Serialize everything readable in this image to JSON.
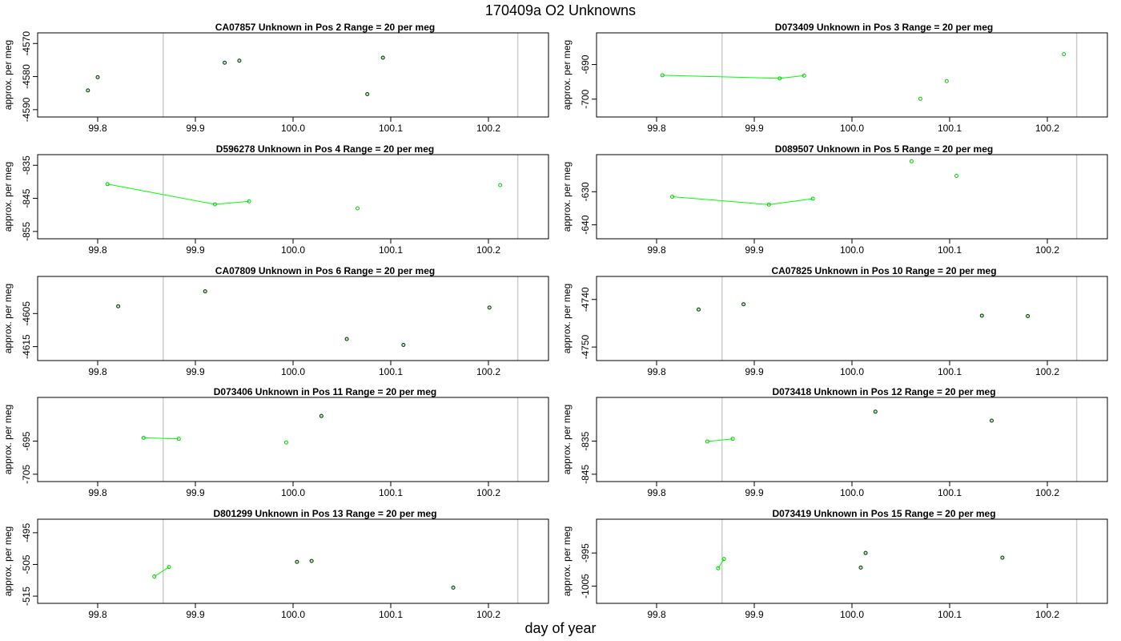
{
  "title": "170409a  O2 Unknowns",
  "xlabel": "day of year",
  "colors": {
    "series": "#00ff00",
    "points_green": "#00cc00",
    "points_dark": "#003300",
    "ref_lines": "#cccccc",
    "axis": "#000000"
  },
  "chart_data": [
    {
      "type": "scatter",
      "title": "CA07857    Unknown in Pos 2          Range = 20 per meg",
      "ylabel": "approx. per meg",
      "xlim": [
        99.75,
        100.25
      ],
      "ylim": [
        -4591,
        -4568
      ],
      "xticks": [
        "99.8",
        "99.9",
        "100.0",
        "100.1",
        "100.2"
      ],
      "yticks": [
        "-4590",
        "-4580",
        "-4570"
      ],
      "ref_lines_x": [
        99.867,
        100.23
      ],
      "lines": [],
      "points": [
        {
          "x": 99.79,
          "y": -4584.2,
          "style": "dark"
        },
        {
          "x": 99.8,
          "y": -4580.2,
          "style": "dark"
        },
        {
          "x": 99.93,
          "y": -4575.8,
          "style": "dark"
        },
        {
          "x": 99.945,
          "y": -4575.2,
          "style": "dark"
        },
        {
          "x": 100.076,
          "y": -4585.3,
          "style": "dark"
        },
        {
          "x": 100.092,
          "y": -4574.3,
          "style": "dark"
        }
      ]
    },
    {
      "type": "scatter",
      "title": "D073409    Unknown in Pos 3          Range = 20 per meg",
      "ylabel": "approx. per meg",
      "xlim": [
        99.75,
        100.25
      ],
      "ylim": [
        -704,
        -682
      ],
      "xticks": [
        "99.8",
        "99.9",
        "100.0",
        "100.1",
        "100.2"
      ],
      "yticks": [
        "-700",
        "-690"
      ],
      "ref_lines_x": [
        99.867,
        100.23
      ],
      "lines": [
        [
          {
            "x": 99.806,
            "y": -693.1
          },
          {
            "x": 99.926,
            "y": -694.0
          },
          {
            "x": 99.951,
            "y": -693.2
          }
        ]
      ],
      "points": [
        {
          "x": 99.806,
          "y": -693.1,
          "style": "green"
        },
        {
          "x": 99.926,
          "y": -694.0,
          "style": "green"
        },
        {
          "x": 99.951,
          "y": -693.2,
          "style": "green"
        },
        {
          "x": 100.07,
          "y": -699.9,
          "style": "green"
        },
        {
          "x": 100.097,
          "y": -694.8,
          "style": "green"
        },
        {
          "x": 100.217,
          "y": -687.0,
          "style": "green"
        }
      ]
    },
    {
      "type": "scatter",
      "title": "D596278    Unknown in Pos 4          Range = 20 per meg",
      "ylabel": "approx. per meg",
      "xlim": [
        99.75,
        100.25
      ],
      "ylim": [
        -856,
        -833
      ],
      "xticks": [
        "99.8",
        "99.9",
        "100.0",
        "100.1",
        "100.2"
      ],
      "yticks": [
        "-855",
        "-845",
        "-835"
      ],
      "ref_lines_x": [
        99.867,
        100.23
      ],
      "lines": [
        [
          {
            "x": 99.81,
            "y": -840.7
          },
          {
            "x": 99.92,
            "y": -846.8
          },
          {
            "x": 99.955,
            "y": -845.9
          }
        ]
      ],
      "points": [
        {
          "x": 99.81,
          "y": -840.7,
          "style": "green"
        },
        {
          "x": 99.92,
          "y": -846.8,
          "style": "green"
        },
        {
          "x": 99.955,
          "y": -845.9,
          "style": "green"
        },
        {
          "x": 100.066,
          "y": -848.0,
          "style": "green"
        },
        {
          "x": 100.212,
          "y": -841.0,
          "style": "green"
        }
      ]
    },
    {
      "type": "scatter",
      "title": "D089507    Unknown in Pos 5          Range = 20 per meg",
      "ylabel": "approx. per meg",
      "xlim": [
        99.75,
        100.25
      ],
      "ylim": [
        -643,
        -620
      ],
      "xticks": [
        "99.8",
        "99.9",
        "100.0",
        "100.1",
        "100.2"
      ],
      "yticks": [
        "-640",
        "-630"
      ],
      "ref_lines_x": [
        99.867,
        100.23
      ],
      "lines": [
        [
          {
            "x": 99.816,
            "y": -631.5
          },
          {
            "x": 99.915,
            "y": -633.9
          },
          {
            "x": 99.96,
            "y": -632.1
          }
        ]
      ],
      "points": [
        {
          "x": 99.816,
          "y": -631.5,
          "style": "green"
        },
        {
          "x": 99.915,
          "y": -633.9,
          "style": "green"
        },
        {
          "x": 99.96,
          "y": -632.1,
          "style": "green"
        },
        {
          "x": 100.061,
          "y": -620.8,
          "style": "green"
        },
        {
          "x": 100.107,
          "y": -625.2,
          "style": "green"
        }
      ]
    },
    {
      "type": "scatter",
      "title": "CA07809    Unknown in Pos 6          Range = 20 per meg",
      "ylabel": "approx. per meg",
      "xlim": [
        99.75,
        100.25
      ],
      "ylim": [
        -4618,
        -4595
      ],
      "xticks": [
        "99.8",
        "99.9",
        "100.0",
        "100.1",
        "100.2"
      ],
      "yticks": [
        "-4615",
        "-4605"
      ],
      "ref_lines_x": [
        99.867,
        100.23
      ],
      "lines": [],
      "points": [
        {
          "x": 99.821,
          "y": -4602.8,
          "style": "dark"
        },
        {
          "x": 99.91,
          "y": -4598.3,
          "style": "dark"
        },
        {
          "x": 100.055,
          "y": -4612.7,
          "style": "dark"
        },
        {
          "x": 100.113,
          "y": -4614.5,
          "style": "dark"
        },
        {
          "x": 100.201,
          "y": -4603.2,
          "style": "dark"
        }
      ]
    },
    {
      "type": "scatter",
      "title": "CA07825    Unknown in Pos 10          Range = 20 per meg",
      "ylabel": "approx. per meg",
      "xlim": [
        99.75,
        100.25
      ],
      "ylim": [
        -4752,
        -4736
      ],
      "xticks": [
        "99.8",
        "99.9",
        "100.0",
        "100.1",
        "100.2"
      ],
      "yticks": [
        "-4750",
        "-4740"
      ],
      "ref_lines_x": [
        99.867,
        100.23
      ],
      "lines": [],
      "points": [
        {
          "x": 99.843,
          "y": -4742.1,
          "style": "dark"
        },
        {
          "x": 99.889,
          "y": -4741.0,
          "style": "dark"
        },
        {
          "x": 100.133,
          "y": -4743.4,
          "style": "dark"
        },
        {
          "x": 100.18,
          "y": -4743.5,
          "style": "dark"
        }
      ]
    },
    {
      "type": "scatter",
      "title": "D073406    Unknown in Pos 11          Range = 20 per meg",
      "ylabel": "approx. per meg",
      "xlim": [
        99.75,
        100.25
      ],
      "ylim": [
        -706,
        -683
      ],
      "xticks": [
        "99.8",
        "99.9",
        "100.0",
        "100.1",
        "100.2"
      ],
      "yticks": [
        "-705",
        "-695"
      ],
      "ref_lines_x": [
        99.867,
        100.23
      ],
      "lines": [
        [
          {
            "x": 99.847,
            "y": -694.0
          },
          {
            "x": 99.883,
            "y": -694.3
          }
        ]
      ],
      "points": [
        {
          "x": 99.847,
          "y": -694.0,
          "style": "green"
        },
        {
          "x": 99.883,
          "y": -694.3,
          "style": "green"
        },
        {
          "x": 99.993,
          "y": -695.4,
          "style": "green"
        },
        {
          "x": 100.029,
          "y": -687.4,
          "style": "dark"
        }
      ]
    },
    {
      "type": "scatter",
      "title": "D073418    Unknown in Pos 12          Range = 20 per meg",
      "ylabel": "approx. per meg",
      "xlim": [
        99.75,
        100.25
      ],
      "ylim": [
        -846,
        -823
      ],
      "xticks": [
        "99.8",
        "99.9",
        "100.0",
        "100.1",
        "100.2"
      ],
      "yticks": [
        "-845",
        "-835"
      ],
      "ref_lines_x": [
        99.867,
        100.23
      ],
      "lines": [
        [
          {
            "x": 99.852,
            "y": -835.1
          },
          {
            "x": 99.878,
            "y": -834.3
          }
        ]
      ],
      "points": [
        {
          "x": 99.852,
          "y": -835.1,
          "style": "green"
        },
        {
          "x": 99.878,
          "y": -834.3,
          "style": "green"
        },
        {
          "x": 100.024,
          "y": -826.1,
          "style": "dark"
        },
        {
          "x": 100.143,
          "y": -828.8,
          "style": "dark"
        }
      ]
    },
    {
      "type": "scatter",
      "title": "D801299    Unknown in Pos 13          Range = 20 per meg",
      "ylabel": "approx. per meg",
      "xlim": [
        99.75,
        100.25
      ],
      "ylim": [
        -516,
        -492
      ],
      "xticks": [
        "99.8",
        "99.9",
        "100.0",
        "100.1",
        "100.2"
      ],
      "yticks": [
        "-515",
        "-505",
        "-495"
      ],
      "ref_lines_x": [
        99.867,
        100.23
      ],
      "lines": [
        [
          {
            "x": 99.858,
            "y": -508.8
          },
          {
            "x": 99.873,
            "y": -505.8
          }
        ]
      ],
      "points": [
        {
          "x": 99.858,
          "y": -508.8,
          "style": "green"
        },
        {
          "x": 99.873,
          "y": -505.8,
          "style": "green"
        },
        {
          "x": 100.004,
          "y": -504.2,
          "style": "dark"
        },
        {
          "x": 100.019,
          "y": -503.9,
          "style": "dark"
        },
        {
          "x": 100.164,
          "y": -512.3,
          "style": "dark"
        }
      ]
    },
    {
      "type": "scatter",
      "title": "D073419    Unknown in Pos 15          Range = 20 per meg",
      "ylabel": "approx. per meg",
      "xlim": [
        99.75,
        100.25
      ],
      "ylim": [
        -1009,
        -986
      ],
      "xticks": [
        "99.8",
        "99.9",
        "100.0",
        "100.1",
        "100.2"
      ],
      "yticks": [
        "-1005",
        "-995"
      ],
      "ref_lines_x": [
        99.867,
        100.23
      ],
      "lines": [
        [
          {
            "x": 99.863,
            "y": -999.6
          },
          {
            "x": 99.869,
            "y": -996.8
          }
        ]
      ],
      "points": [
        {
          "x": 99.863,
          "y": -999.6,
          "style": "green"
        },
        {
          "x": 99.869,
          "y": -996.8,
          "style": "green"
        },
        {
          "x": 100.009,
          "y": -999.4,
          "style": "dark"
        },
        {
          "x": 100.014,
          "y": -995.0,
          "style": "dark"
        },
        {
          "x": 100.154,
          "y": -996.4,
          "style": "dark"
        }
      ]
    }
  ]
}
